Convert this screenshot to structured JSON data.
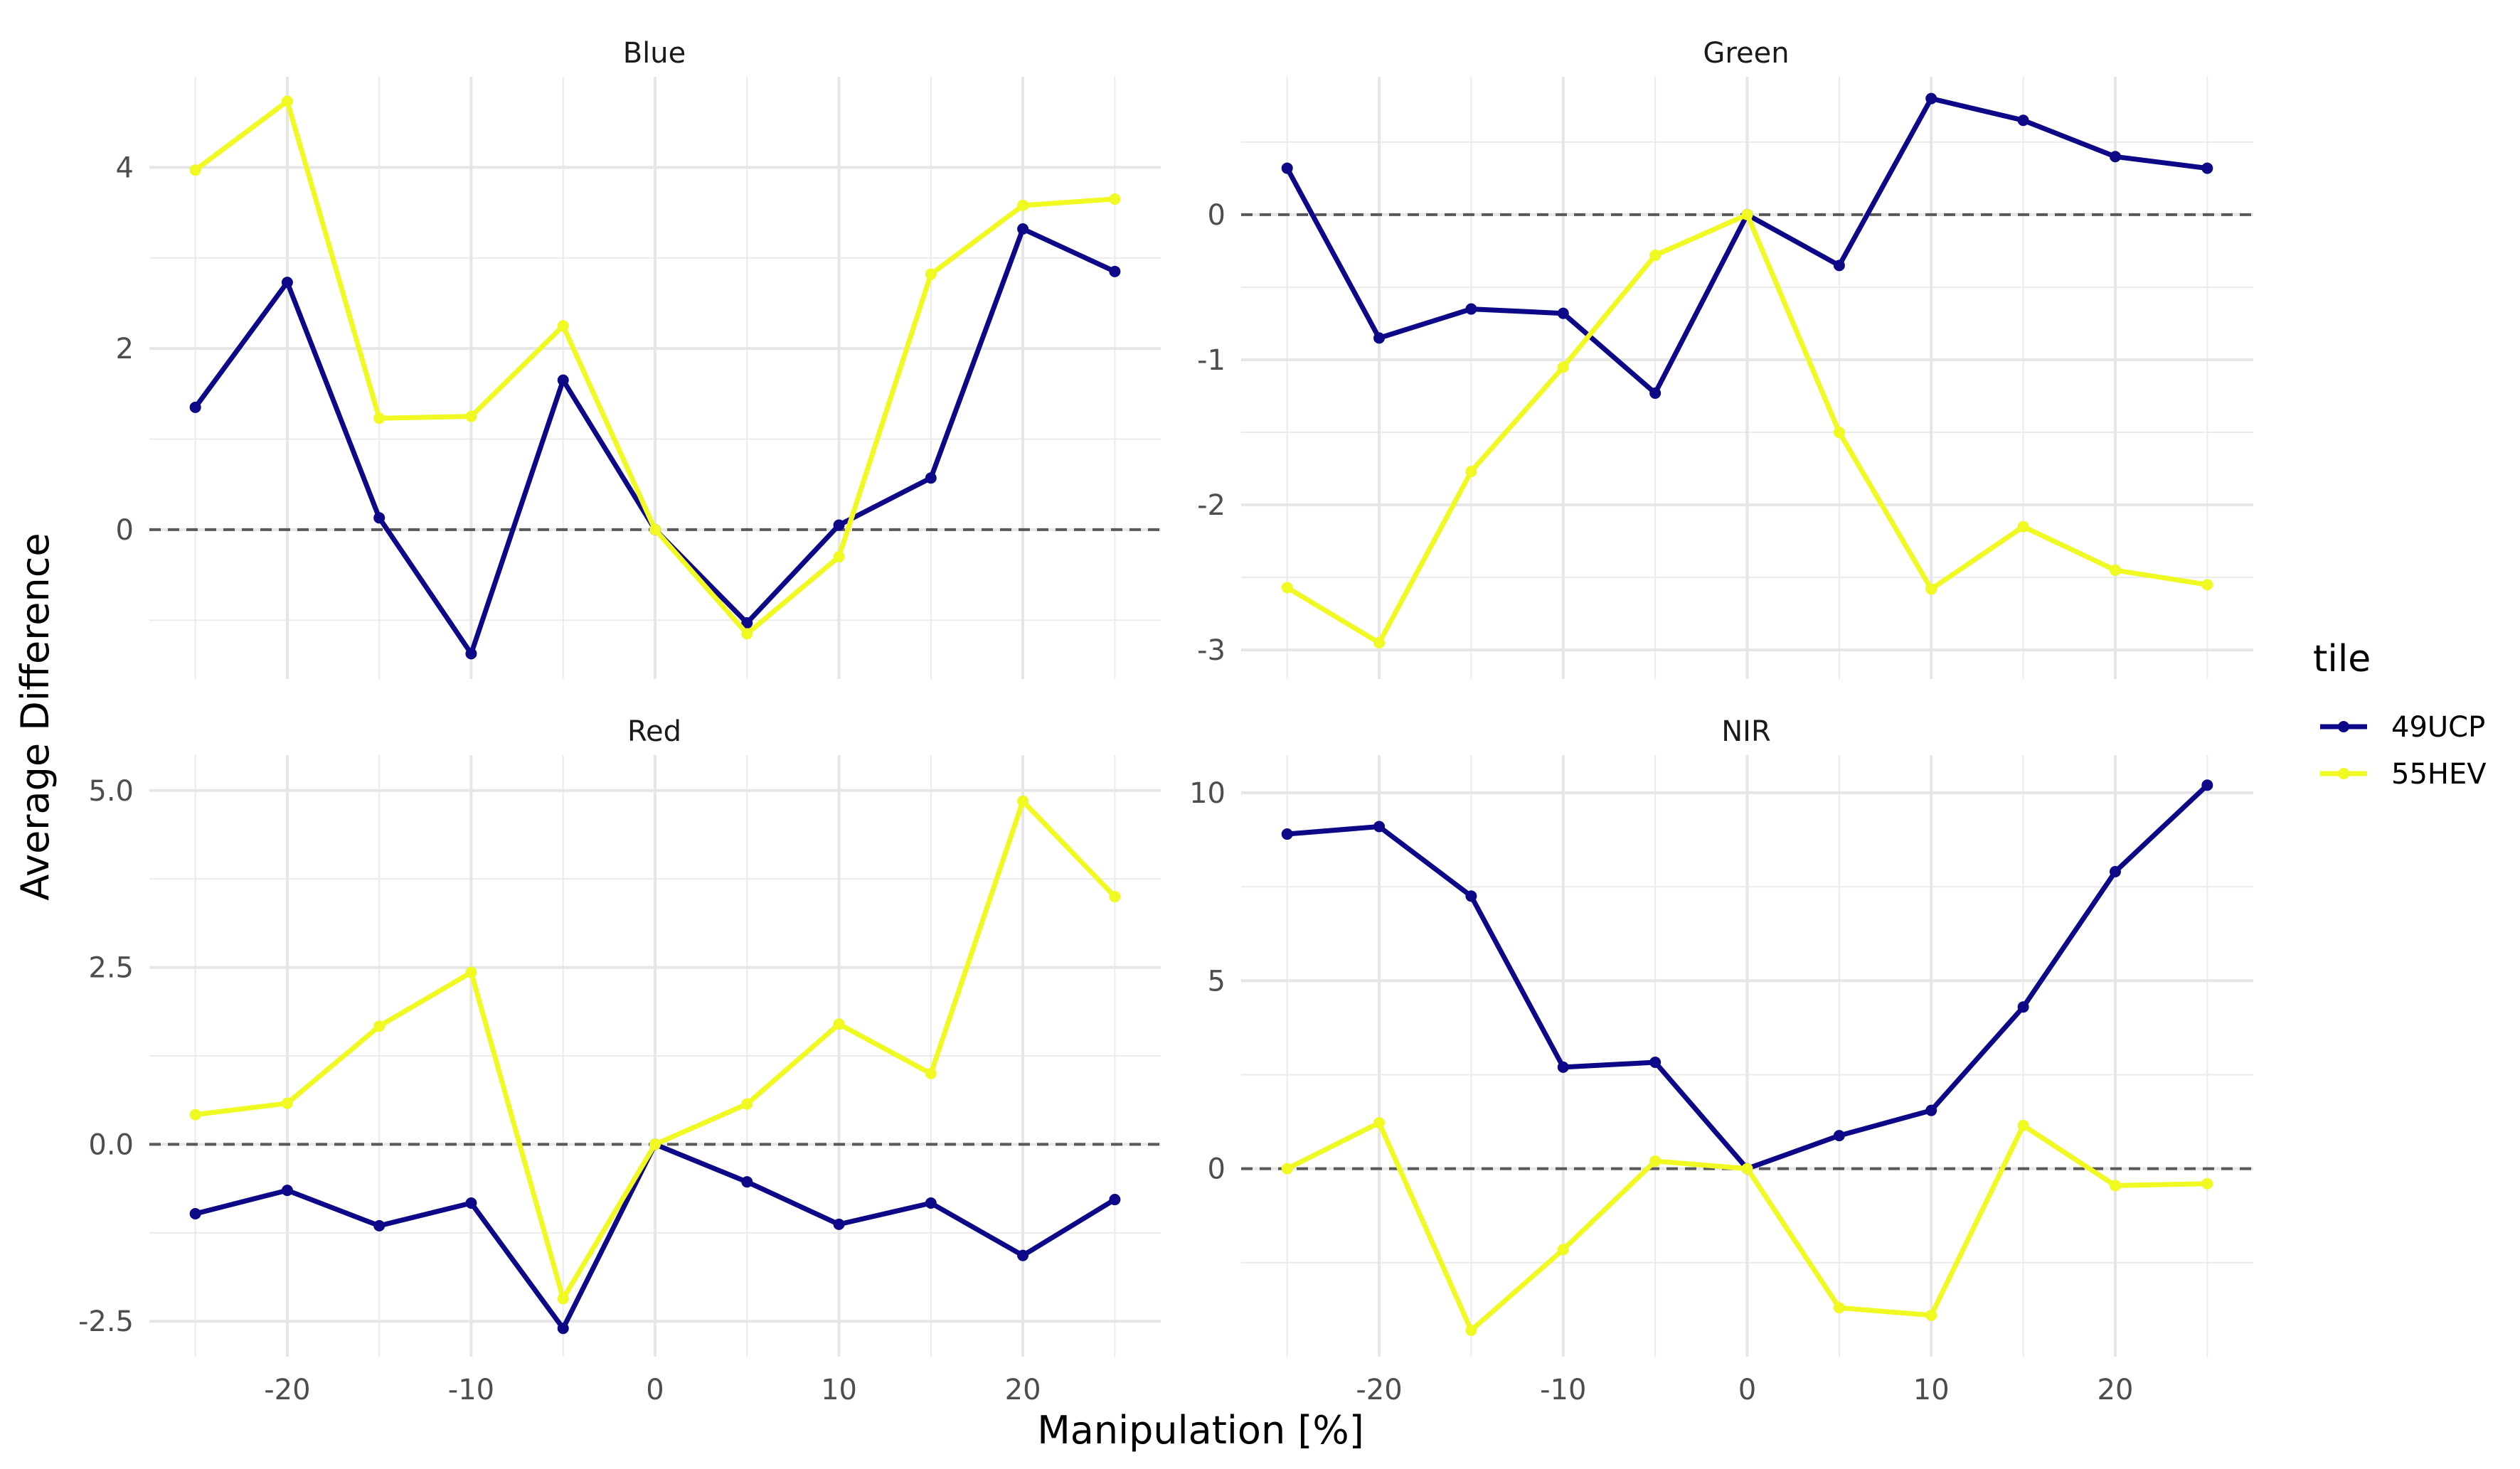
{
  "chart_data": {
    "type": "line",
    "xlabel": "Manipulation [%]",
    "ylabel": "Average Difference",
    "x": [
      -25,
      -20,
      -15,
      -10,
      -5,
      0,
      5,
      10,
      15,
      20,
      25
    ],
    "x_ticks": [
      -20,
      -10,
      0,
      10,
      20
    ],
    "x_tick_labels": [
      "-20",
      "-10",
      "0",
      "10",
      "20"
    ],
    "xlim": [
      -27.5,
      27.5
    ],
    "legend": {
      "title": "tile",
      "position": "right"
    },
    "series_colors": {
      "49UCP": "#0d0887",
      "55HEV": "#f0f921"
    },
    "grid": true,
    "reference_line": {
      "y": 0,
      "style": "dashed",
      "color": "#595959"
    },
    "panels": [
      {
        "title": "Blue",
        "ylim": [
          -1.65,
          5.0
        ],
        "y_ticks": [
          0,
          2,
          4
        ],
        "y_tick_labels": [
          "0",
          "2",
          "4"
        ],
        "series": [
          {
            "name": "49UCP",
            "values": [
              1.35,
              2.73,
              0.13,
              -1.37,
              1.65,
              0.0,
              -1.03,
              0.05,
              0.57,
              3.32,
              2.85
            ]
          },
          {
            "name": "55HEV",
            "values": [
              3.97,
              4.73,
              1.23,
              1.25,
              2.25,
              0.0,
              -1.15,
              -0.3,
              2.82,
              3.58,
              3.65
            ]
          }
        ]
      },
      {
        "title": "Green",
        "ylim": [
          -3.2,
          0.95
        ],
        "y_ticks": [
          -3,
          -2,
          -1,
          0
        ],
        "y_tick_labels": [
          "-3",
          "-2",
          "-1",
          "0"
        ],
        "series": [
          {
            "name": "49UCP",
            "values": [
              0.32,
              -0.85,
              -0.65,
              -0.68,
              -1.23,
              0.0,
              -0.35,
              0.8,
              0.65,
              0.4,
              0.32
            ]
          },
          {
            "name": "55HEV",
            "values": [
              -2.57,
              -2.95,
              -1.77,
              -1.05,
              -0.28,
              0.0,
              -1.5,
              -2.58,
              -2.15,
              -2.45,
              -2.55
            ]
          }
        ]
      },
      {
        "title": "Red",
        "ylim": [
          -3.0,
          5.5
        ],
        "y_ticks": [
          -2.5,
          0,
          2.5,
          5
        ],
        "y_tick_labels": [
          "-2.5",
          "0.0",
          "2.5",
          "5.0"
        ],
        "series": [
          {
            "name": "49UCP",
            "values": [
              -0.98,
              -0.65,
              -1.15,
              -0.83,
              -2.6,
              0.0,
              -0.53,
              -1.13,
              -0.83,
              -1.57,
              -0.78
            ]
          },
          {
            "name": "55HEV",
            "values": [
              0.42,
              0.58,
              1.67,
              2.43,
              -2.18,
              0.0,
              0.57,
              1.7,
              1.0,
              4.85,
              3.5
            ]
          }
        ]
      },
      {
        "title": "NIR",
        "ylim": [
          -5.0,
          11.0
        ],
        "y_ticks": [
          0,
          5,
          10
        ],
        "y_tick_labels": [
          "0",
          "5",
          "10"
        ],
        "series": [
          {
            "name": "49UCP",
            "values": [
              8.9,
              9.1,
              7.25,
              2.7,
              2.83,
              0.0,
              0.88,
              1.55,
              4.3,
              7.9,
              10.2
            ]
          },
          {
            "name": "55HEV",
            "values": [
              0.0,
              1.22,
              -4.3,
              -2.15,
              0.2,
              0.0,
              -3.7,
              -3.9,
              1.15,
              -0.45,
              -0.4
            ]
          }
        ]
      }
    ]
  }
}
